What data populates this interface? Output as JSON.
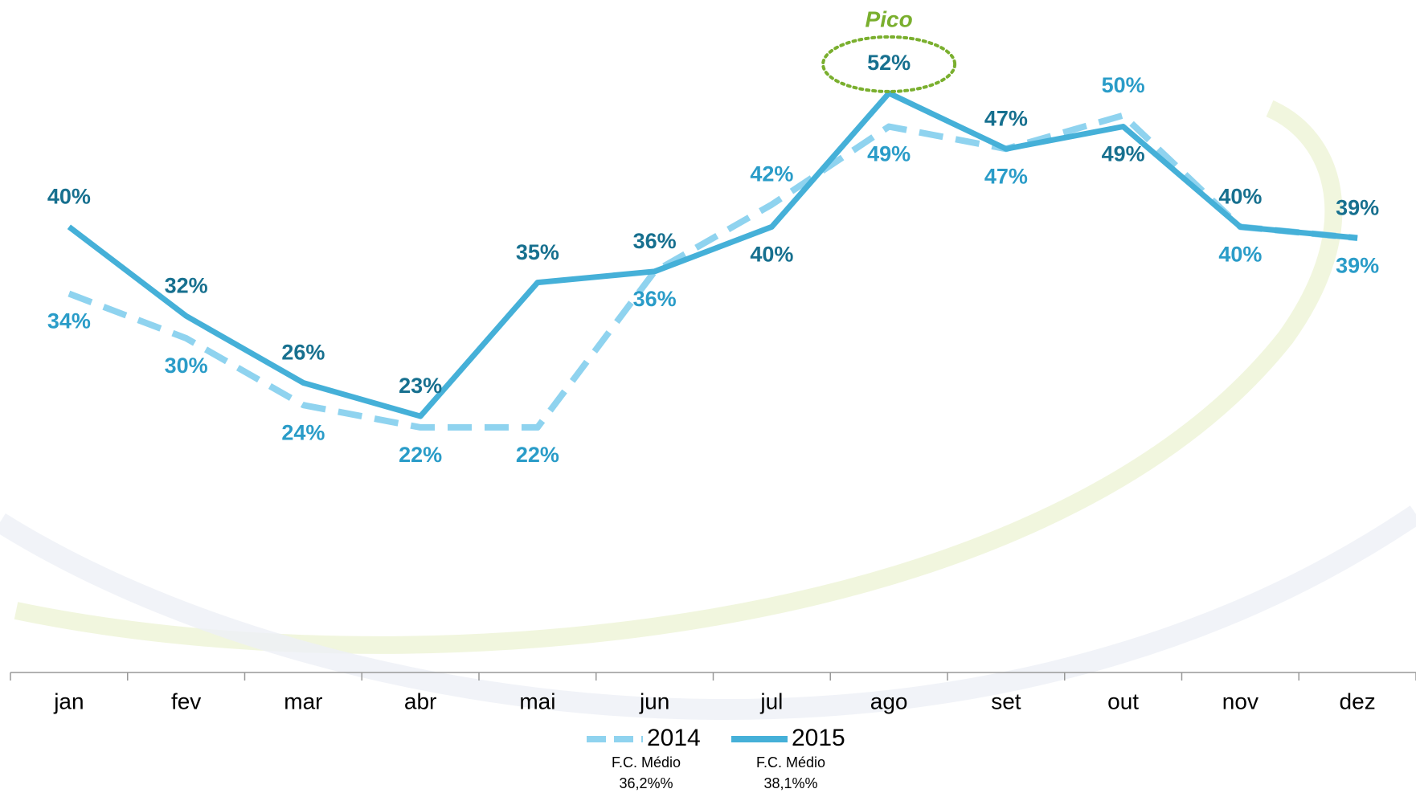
{
  "chart_data": {
    "type": "line",
    "categories": [
      "jan",
      "fev",
      "mar",
      "abr",
      "mai",
      "jun",
      "jul",
      "ago",
      "set",
      "out",
      "nov",
      "dez"
    ],
    "ylim": [
      0,
      60
    ],
    "grid": false,
    "series": [
      {
        "name": "2014",
        "color": "#8fd3ef",
        "label_color": "#2a9cc8",
        "dashed": true,
        "values": [
          34,
          30,
          24,
          22,
          22,
          36,
          42,
          49,
          47,
          50,
          40,
          39
        ],
        "value_labels": [
          "34%",
          "30%",
          "24%",
          "22%",
          "22%",
          "36%",
          "42%",
          "49%",
          "47%",
          "50%",
          "40%",
          "39%"
        ],
        "avg_label": "F.C. Médio",
        "avg_value": "36,2%%"
      },
      {
        "name": "2015",
        "color": "#45b0d8",
        "label_color": "#17708f",
        "dashed": false,
        "values": [
          40,
          32,
          26,
          23,
          35,
          36,
          40,
          52,
          47,
          49,
          40,
          39
        ],
        "value_labels": [
          "40%",
          "32%",
          "26%",
          "23%",
          "35%",
          "36%",
          "40%",
          "52%",
          "47%",
          "49%",
          "40%",
          "39%"
        ],
        "avg_label": "F.C. Médio",
        "avg_value": "38,1%%"
      }
    ],
    "annotation": {
      "text": "Pico",
      "color": "#7aaf2e",
      "index": 7,
      "series": 1
    }
  }
}
